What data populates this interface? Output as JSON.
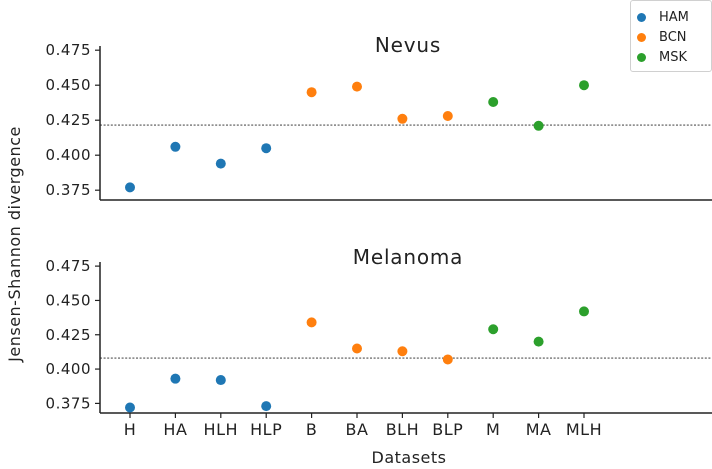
{
  "colors": {
    "HAM": "#1f77b4",
    "BCN": "#ff7f0e",
    "MSK": "#2ca02c"
  },
  "chart_data": {
    "type": "scatter",
    "ylabel": "Jensen-Shannon divergence",
    "xlabel": "Datasets",
    "categories": [
      "H",
      "HA",
      "HLH",
      "HLP",
      "B",
      "BA",
      "BLH",
      "BLP",
      "M",
      "MA",
      "MLH"
    ],
    "category_group": [
      "HAM",
      "HAM",
      "HAM",
      "HAM",
      "BCN",
      "BCN",
      "BCN",
      "BCN",
      "MSK",
      "MSK",
      "MSK"
    ],
    "legend": [
      "HAM",
      "BCN",
      "MSK"
    ],
    "legend_position": "top-right",
    "yticks": [
      "0.375",
      "0.400",
      "0.425",
      "0.450",
      "0.475"
    ],
    "ylim": [
      0.368,
      0.478
    ],
    "grid": false,
    "panels": [
      {
        "title": "Nevus",
        "values": [
          0.377,
          0.406,
          0.394,
          0.405,
          0.445,
          0.449,
          0.426,
          0.428,
          0.438,
          0.421,
          0.45
        ],
        "errors": [
          0.003,
          0.001,
          0.001,
          0.001,
          0.003,
          0.001,
          0.001,
          0.001,
          0.001,
          0.003,
          0.001
        ],
        "reference_line": 0.4215
      },
      {
        "title": "Melanoma",
        "values": [
          0.372,
          0.393,
          0.392,
          0.373,
          0.434,
          0.415,
          0.413,
          0.407,
          0.429,
          0.42,
          0.442
        ],
        "errors": [
          0.001,
          0.001,
          0.001,
          0.002,
          0.003,
          0.001,
          0.001,
          0.001,
          0.001,
          0.001,
          0.001
        ],
        "reference_line": 0.408
      }
    ]
  }
}
